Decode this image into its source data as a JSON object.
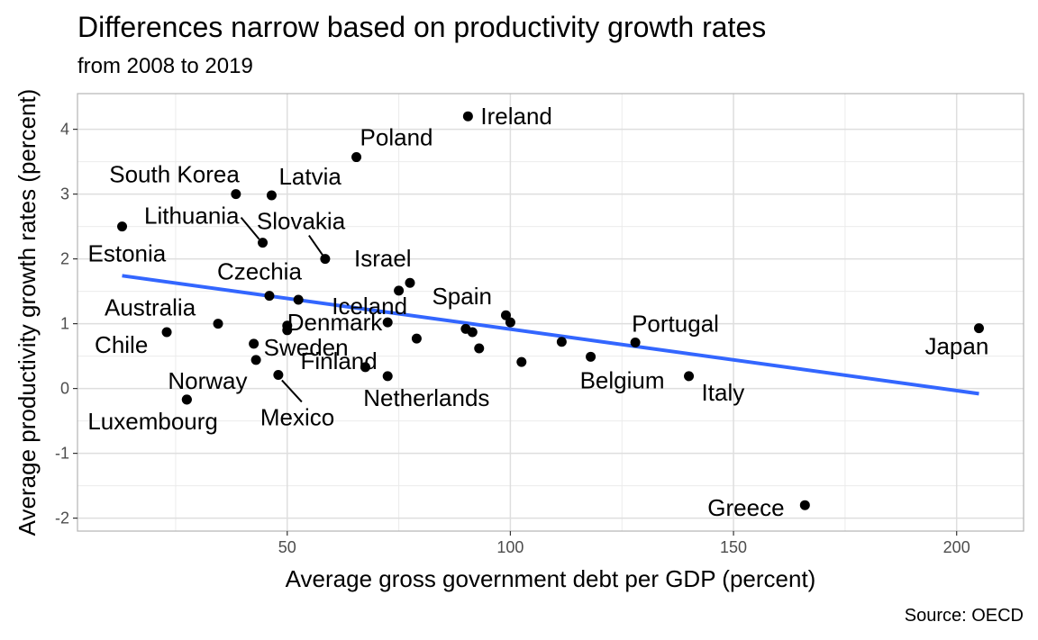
{
  "chart_data": {
    "type": "scatter",
    "title": "Differences narrow based on productivity growth rates",
    "subtitle": "from 2008 to 2019",
    "caption": "Source: OECD",
    "xlabel": "Average gross government debt per GDP (percent)",
    "ylabel": "Average productivity growth rates (percent)",
    "xlim": [
      3,
      215
    ],
    "ylim": [
      -2.2,
      4.55
    ],
    "x_ticks": [
      50,
      100,
      150,
      200
    ],
    "y_ticks": [
      -2,
      -1,
      0,
      1,
      2,
      3,
      4
    ],
    "grid": true,
    "points": [
      {
        "label": "Ireland",
        "x": 90.5,
        "y": 4.2
      },
      {
        "label": "Poland",
        "x": 65.5,
        "y": 3.57
      },
      {
        "label": "South Korea",
        "x": 38.5,
        "y": 3.0
      },
      {
        "label": "Latvia",
        "x": 46.5,
        "y": 2.98
      },
      {
        "label": "Estonia",
        "x": 13,
        "y": 2.5
      },
      {
        "label": "Lithuania",
        "x": 44.5,
        "y": 2.25
      },
      {
        "label": "Slovakia",
        "x": 58.5,
        "y": 2.0
      },
      {
        "label": "Israel",
        "x": 77.5,
        "y": 1.63
      },
      {
        "label": "",
        "x": 75,
        "y": 1.51
      },
      {
        "label": "Czechia",
        "x": 46,
        "y": 1.43
      },
      {
        "label": "",
        "x": 52.5,
        "y": 1.37
      },
      {
        "label": "Spain",
        "x": 99,
        "y": 1.13
      },
      {
        "label": "",
        "x": 100,
        "y": 1.02
      },
      {
        "label": "Iceland",
        "x": 72.5,
        "y": 1.02
      },
      {
        "label": "Australia",
        "x": 34.5,
        "y": 1.0
      },
      {
        "label": "Denmark",
        "x": 50,
        "y": 0.97
      },
      {
        "label": "",
        "x": 50,
        "y": 0.9
      },
      {
        "label": "",
        "x": 90,
        "y": 0.92
      },
      {
        "label": "",
        "x": 91.5,
        "y": 0.87
      },
      {
        "label": "Chile",
        "x": 23,
        "y": 0.87
      },
      {
        "label": "",
        "x": 79,
        "y": 0.77
      },
      {
        "label": "Portugal",
        "x": 128,
        "y": 0.71
      },
      {
        "label": "",
        "x": 111.5,
        "y": 0.72
      },
      {
        "label": "Sweden",
        "x": 42.5,
        "y": 0.69
      },
      {
        "label": "",
        "x": 93,
        "y": 0.62
      },
      {
        "label": "Belgium",
        "x": 118,
        "y": 0.49
      },
      {
        "label": "",
        "x": 43,
        "y": 0.44
      },
      {
        "label": "",
        "x": 102.5,
        "y": 0.41
      },
      {
        "label": "Finland",
        "x": 67.5,
        "y": 0.33
      },
      {
        "label": "Mexico",
        "x": 48,
        "y": 0.21
      },
      {
        "label": "Netherlands",
        "x": 72.5,
        "y": 0.19
      },
      {
        "label": "Italy",
        "x": 140,
        "y": 0.19
      },
      {
        "label": "Norway",
        "x": 27.5,
        "y": -0.17
      },
      {
        "label": "Luxembourg",
        "x": 27.5,
        "y": -0.17
      },
      {
        "label": "Japan",
        "x": 205,
        "y": 0.93
      },
      {
        "label": "Greece",
        "x": 166,
        "y": -1.8
      }
    ],
    "trend_line": {
      "x": [
        13,
        205
      ],
      "y": [
        1.74,
        -0.08
      ],
      "color": "#3366ff"
    },
    "point_color": "#000000",
    "grid_color": "#ebebeb",
    "panel_border_color": "#b3b3b3"
  }
}
